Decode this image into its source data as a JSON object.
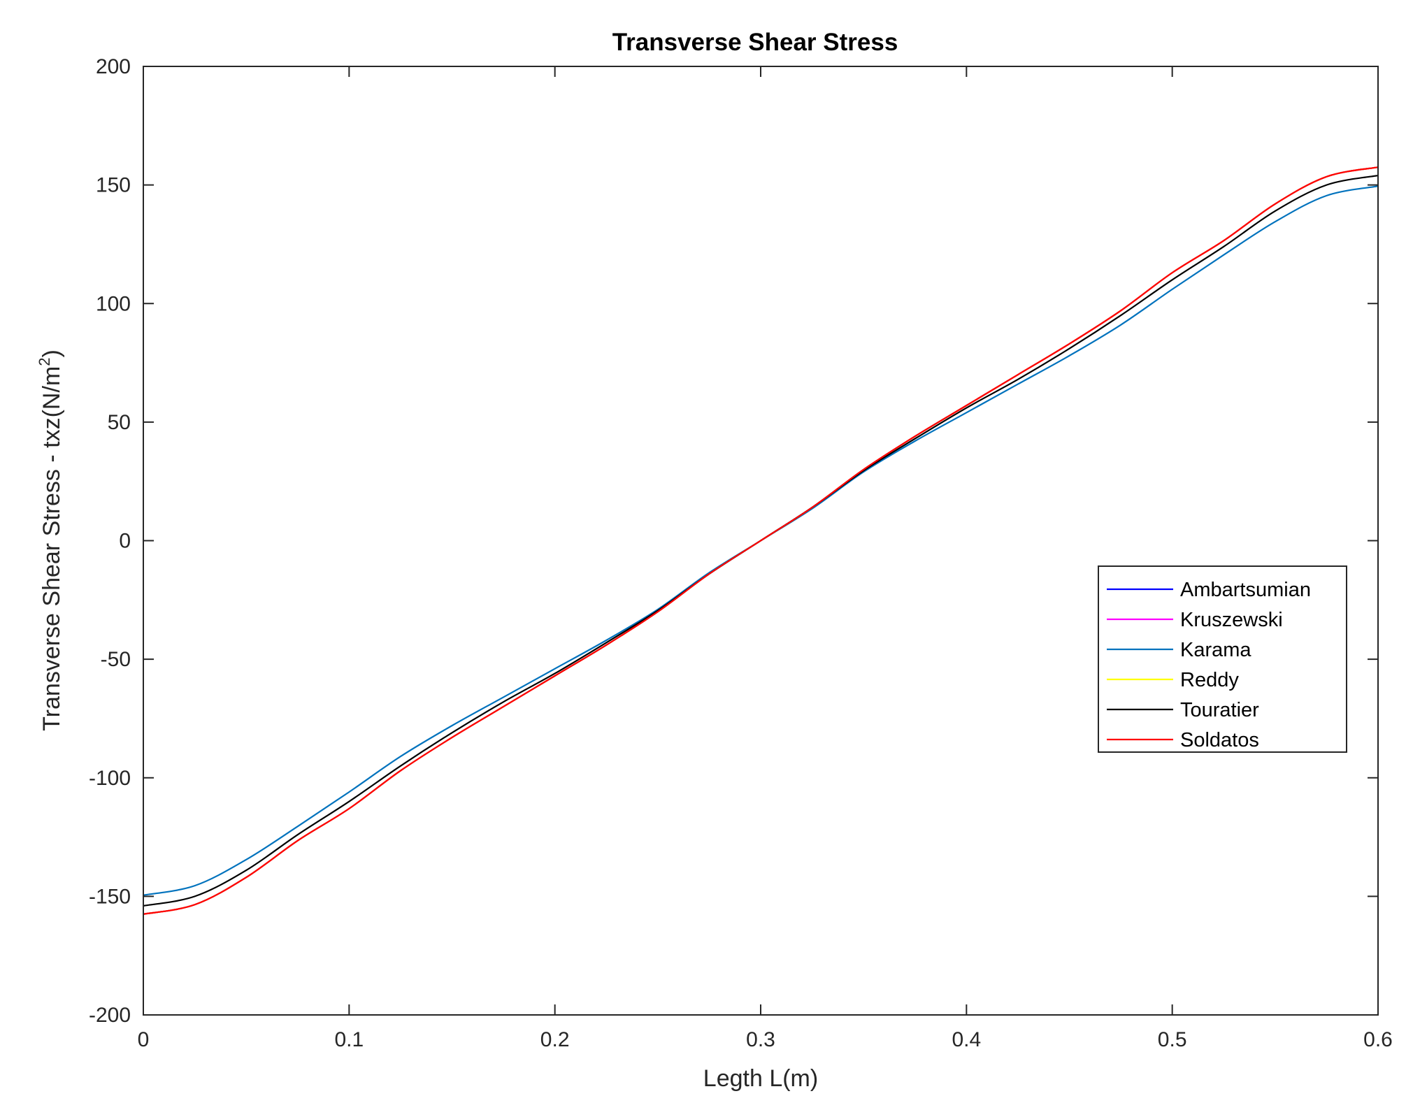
{
  "chart_data": {
    "type": "line",
    "title": "Transverse Shear Stress",
    "xlabel": "Legth L(m)",
    "ylabel_main": "Transverse Shear Stress - txz(N/m",
    "ylabel_sup": "2",
    "ylabel_close": ")",
    "xlim": [
      0,
      0.6
    ],
    "ylim": [
      -200,
      200
    ],
    "xticks": [
      0,
      0.1,
      0.2,
      0.3,
      0.4,
      0.5,
      0.6
    ],
    "xtick_labels": [
      "0",
      "0.1",
      "0.2",
      "0.3",
      "0.4",
      "0.5",
      "0.6"
    ],
    "yticks": [
      200,
      150,
      100,
      50,
      0,
      -50,
      -100,
      -150,
      -200
    ],
    "ytick_labels": [
      "200",
      "150",
      "100",
      "50",
      "0",
      "-50",
      "-100",
      "-150",
      "-200"
    ],
    "grid": false,
    "legend_position": "right, slightly below middle",
    "x": [
      0,
      0.025,
      0.05,
      0.075,
      0.1,
      0.125,
      0.15,
      0.175,
      0.2,
      0.225,
      0.25,
      0.275,
      0.3,
      0.325,
      0.35,
      0.375,
      0.4,
      0.425,
      0.45,
      0.475,
      0.5,
      0.525,
      0.55,
      0.575,
      0.6
    ],
    "series": [
      {
        "name": "Ambartsumian",
        "color": "#0000ff",
        "values": [
          -157.5,
          -153.5,
          -142,
          -126.5,
          -113,
          -97,
          -83,
          -70,
          -57,
          -44,
          -30,
          -14,
          0,
          14,
          30,
          44,
          57,
          70,
          83,
          97,
          113,
          126.5,
          142,
          153.5,
          157.5
        ]
      },
      {
        "name": "Kruszewski",
        "color": "#ff00ff",
        "values": [
          -157.5,
          -153.5,
          -142,
          -126.5,
          -113,
          -97,
          -83,
          -70,
          -57,
          -44,
          -30,
          -14,
          0,
          14,
          30,
          44,
          57,
          70,
          83,
          97,
          113,
          126.5,
          142,
          153.5,
          157.5
        ]
      },
      {
        "name": "Karama",
        "color": "#0072bd",
        "values": [
          -149.5,
          -145.5,
          -134.5,
          -120.5,
          -106,
          -91,
          -78,
          -66,
          -54,
          -42,
          -29,
          -13.5,
          0,
          13.5,
          29,
          42,
          54,
          66,
          78,
          91,
          106,
          120.5,
          134.5,
          145.5,
          149.5
        ]
      },
      {
        "name": "Reddy",
        "color": "#ffff00",
        "values": [
          -157.5,
          -153.5,
          -142,
          -126.5,
          -113,
          -97,
          -83,
          -70,
          -57,
          -44,
          -30,
          -14,
          0,
          14,
          30,
          44,
          57,
          70,
          83,
          97,
          113,
          126.5,
          142,
          153.5,
          157.5
        ]
      },
      {
        "name": "Touratier",
        "color": "#000000",
        "values": [
          -154,
          -150,
          -139,
          -124,
          -110,
          -95,
          -81,
          -68,
          -56,
          -43,
          -29.5,
          -14,
          0,
          14,
          29.5,
          43,
          56,
          68,
          81,
          95,
          110,
          124,
          139,
          150,
          154
        ]
      },
      {
        "name": "Soldatos",
        "color": "#ff0000",
        "values": [
          -157.5,
          -153.5,
          -142,
          -126.5,
          -113,
          -97,
          -83,
          -70,
          -57,
          -44,
          -30,
          -14,
          0,
          14,
          30,
          44,
          57,
          70,
          83,
          97,
          113,
          126.5,
          142,
          153.5,
          157.5
        ]
      }
    ]
  }
}
